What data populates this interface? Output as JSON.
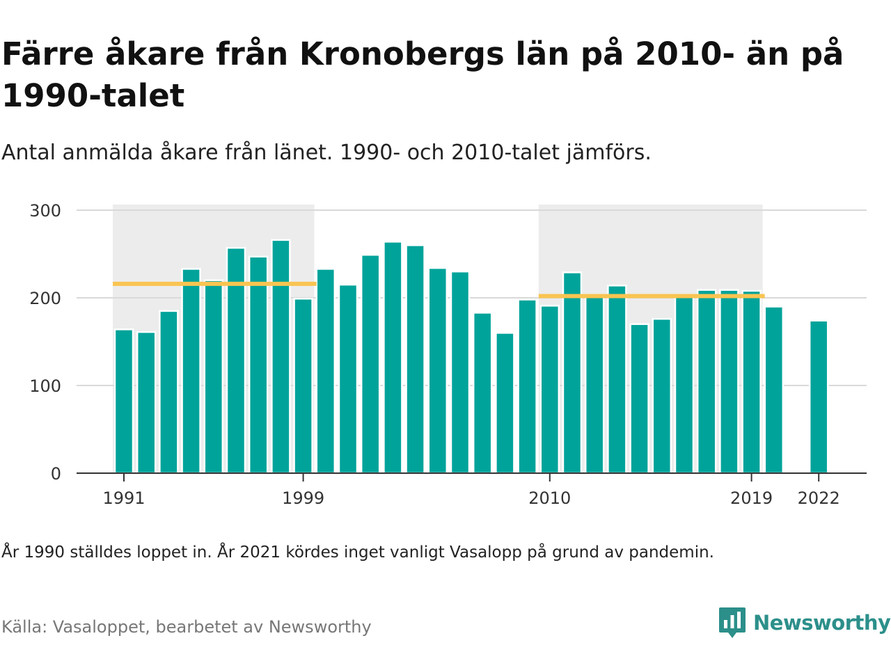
{
  "title": "Färre åkare från Kronobergs län på 2010- än på 1990-talet",
  "subtitle": "Antal anmälda åkare från länet. 1990- och 2010-talet jämförs.",
  "note": "År 1990 ställdes loppet in. År 2021 kördes inget vanligt Vasalopp på grund av pandemin.",
  "source": "Källa: Vasaloppet, bearbetet av Newsworthy",
  "brand": {
    "name": "Newsworthy",
    "icon": "newsworthy-logo-icon",
    "color": "#2c8f8a"
  },
  "chart_data": {
    "type": "bar",
    "x": [
      1991,
      1992,
      1993,
      1994,
      1995,
      1996,
      1997,
      1998,
      1999,
      2000,
      2001,
      2002,
      2003,
      2004,
      2005,
      2006,
      2007,
      2008,
      2009,
      2010,
      2011,
      2012,
      2013,
      2014,
      2015,
      2016,
      2017,
      2018,
      2019,
      2020,
      2021,
      2022
    ],
    "values": [
      164,
      161,
      185,
      233,
      220,
      257,
      247,
      266,
      199,
      233,
      215,
      249,
      264,
      260,
      234,
      230,
      183,
      160,
      198,
      191,
      229,
      201,
      214,
      170,
      176,
      201,
      209,
      209,
      208,
      190,
      null,
      174
    ],
    "x_tick_labels": [
      "1991",
      "1999",
      "2010",
      "2019",
      "2022"
    ],
    "y_ticks": [
      0,
      100,
      200,
      300
    ],
    "ylim": [
      0,
      300
    ],
    "xlabel": "",
    "ylabel": "",
    "grid": "horizontal",
    "colors": {
      "bar": "#00a39a",
      "average_line": "#f9c451",
      "decade_band": "#ececec",
      "grid": "#d9d9d9",
      "axis": "#333333"
    },
    "decade_bands": [
      {
        "from": 1991,
        "to": 1999,
        "average": 216
      },
      {
        "from": 2010,
        "to": 2019,
        "average": 202
      }
    ]
  }
}
